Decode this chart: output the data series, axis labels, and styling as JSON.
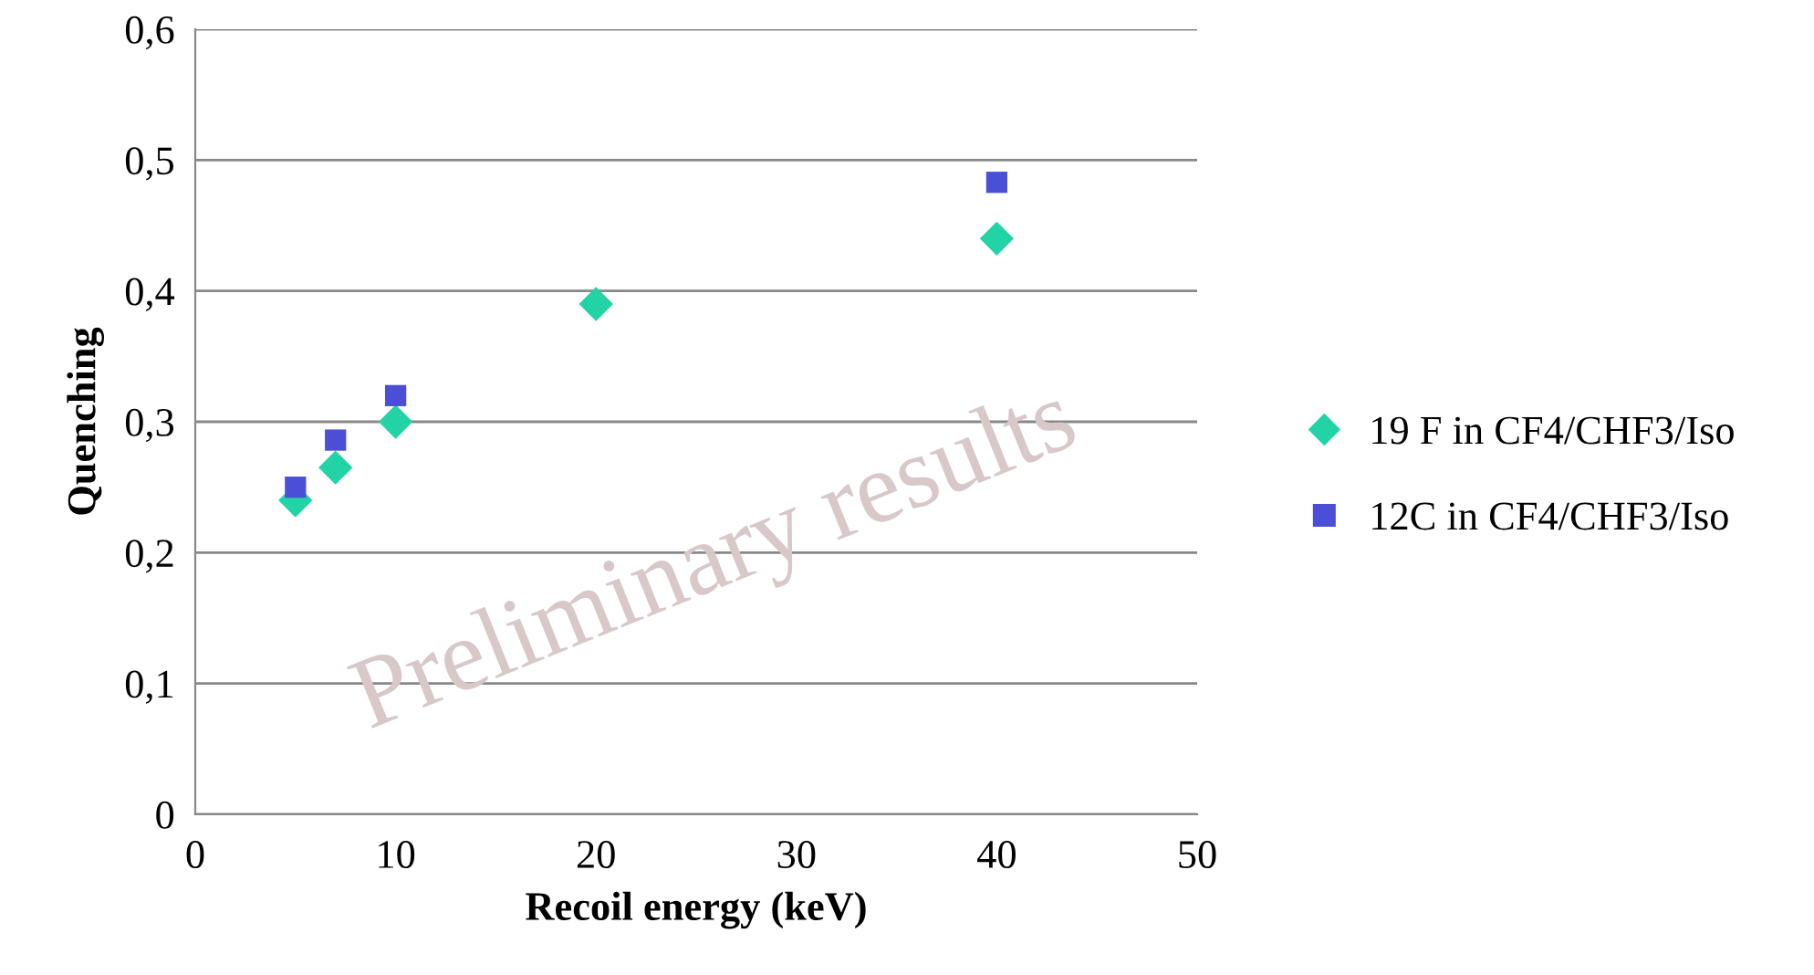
{
  "chart_data": {
    "type": "scatter",
    "xlabel": "Recoil energy (keV)",
    "ylabel": "Quenching",
    "xlim": [
      0,
      50
    ],
    "xticks": [
      0,
      10,
      20,
      30,
      40,
      50
    ],
    "ylim": [
      0,
      0.6
    ],
    "yticks": [
      {
        "value": 0,
        "label": "0"
      },
      {
        "value": 0.1,
        "label": "0,1"
      },
      {
        "value": 0.2,
        "label": "0,2"
      },
      {
        "value": 0.3,
        "label": "0,3"
      },
      {
        "value": 0.4,
        "label": "0,4"
      },
      {
        "value": 0.5,
        "label": "0,5"
      },
      {
        "value": 0.6,
        "label": "0,6"
      }
    ],
    "grid": "y",
    "legend": "right",
    "series": [
      {
        "name": "19 F in CF4/CHF3/Iso",
        "color": "#22d3a6",
        "marker": "diamond",
        "x": [
          5,
          7,
          10,
          20,
          40
        ],
        "values": [
          0.24,
          0.265,
          0.3,
          0.39,
          0.44
        ]
      },
      {
        "name": "12C in CF4/CHF3/Iso",
        "color": "#4b4fd6",
        "marker": "square",
        "x": [
          5,
          7,
          10,
          40
        ],
        "values": [
          0.25,
          0.286,
          0.32,
          0.483
        ]
      }
    ],
    "annotations": [
      "Preliminary results"
    ]
  }
}
